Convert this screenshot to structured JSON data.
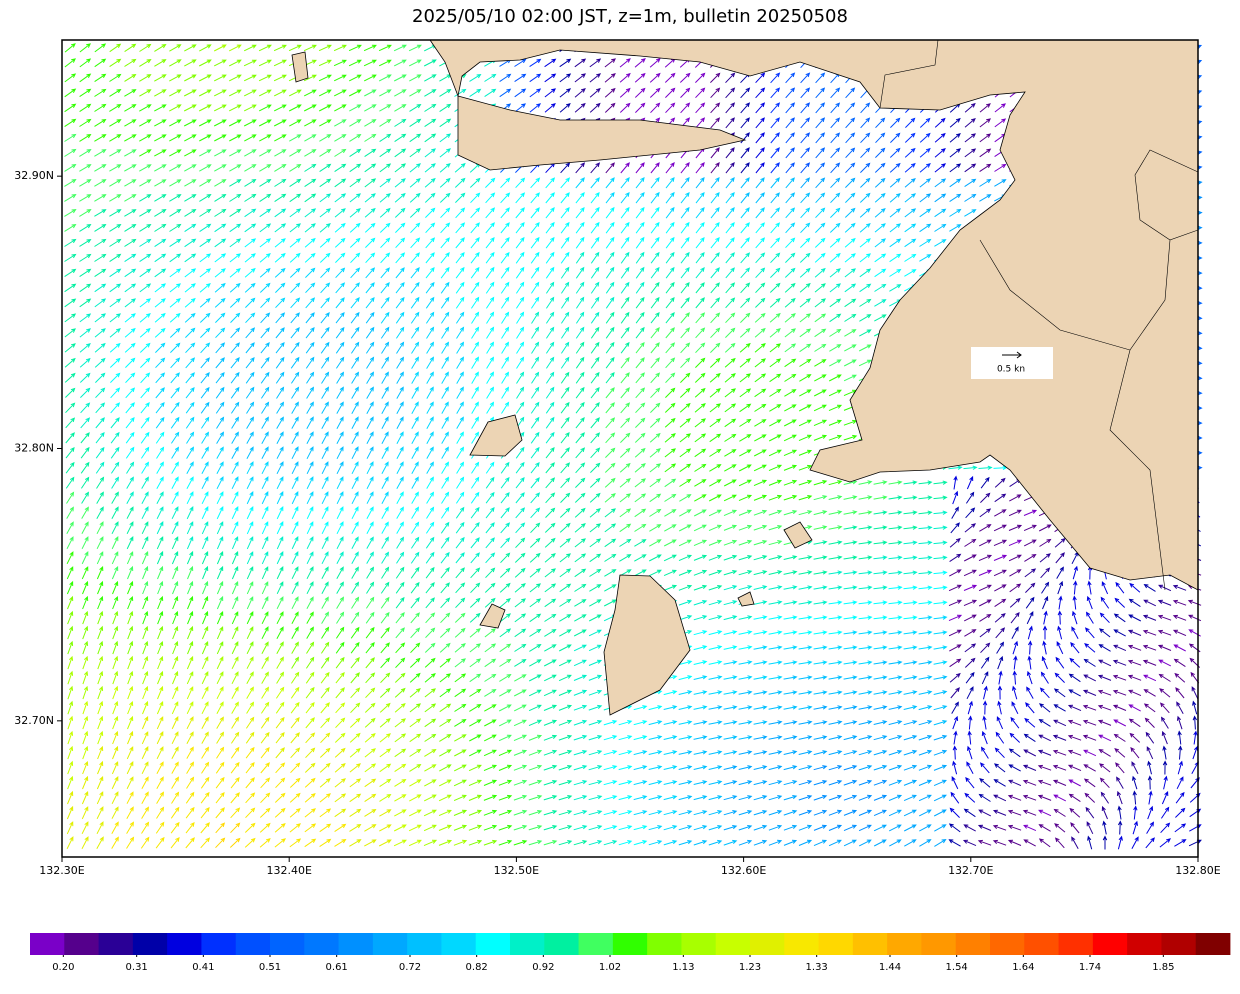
{
  "chart_data": {
    "type": "vector-field",
    "title": "2025/05/10 02:00 JST, z=1m, bulletin 20250508",
    "xlim": [
      132.3,
      132.8
    ],
    "ylim": [
      32.65,
      32.95
    ],
    "xticks": [
      {
        "value": 132.3,
        "label": "132.30E"
      },
      {
        "value": 132.4,
        "label": "132.40E"
      },
      {
        "value": 132.5,
        "label": "132.50E"
      },
      {
        "value": 132.6,
        "label": "132.60E"
      },
      {
        "value": 132.7,
        "label": "132.70E"
      },
      {
        "value": 132.8,
        "label": "132.80E"
      }
    ],
    "yticks": [
      {
        "value": 32.9,
        "label": "32.90N"
      },
      {
        "value": 32.8,
        "label": "32.80N"
      },
      {
        "value": 32.7,
        "label": "32.70N"
      }
    ],
    "reference_label": "0.5 kn",
    "land_color": "#ecd4b4",
    "colorbar": {
      "clim": [
        0.15,
        1.95
      ],
      "ticks": [
        {
          "value": 0.2,
          "label": "0.20"
        },
        0.31,
        0.41,
        0.51,
        0.61,
        0.72,
        0.82,
        0.92,
        1.02,
        1.13,
        1.23,
        1.33,
        1.44,
        1.54,
        1.64,
        1.74,
        1.85
      ],
      "colors": [
        "#7a00c8",
        "#55008c",
        "#2a0096",
        "#0000a8",
        "#0000e0",
        "#0030ff",
        "#0050ff",
        "#0064ff",
        "#0078ff",
        "#0090ff",
        "#00a8ff",
        "#00c0ff",
        "#00d8ff",
        "#00ffff",
        "#00f0c8",
        "#00f0a0",
        "#40ff60",
        "#30ff00",
        "#80ff00",
        "#a8ff00",
        "#c8ff00",
        "#e0f000",
        "#f8e800",
        "#ffd800",
        "#ffc000",
        "#ffa800",
        "#ff9800",
        "#ff8000",
        "#ff6800",
        "#ff5000",
        "#ff3000",
        "#ff0000",
        "#d00000",
        "#b00000",
        "#800000"
      ]
    }
  }
}
